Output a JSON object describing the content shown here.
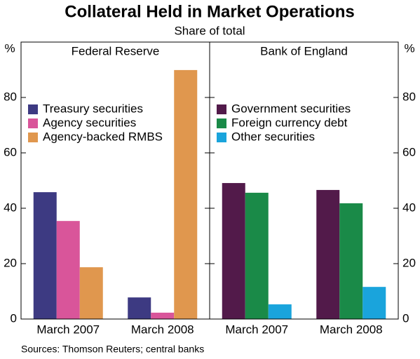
{
  "chart_data": {
    "type": "bar",
    "title": "Collateral Held in Market Operations",
    "subtitle": "Share of total",
    "ylabel": "%",
    "source": "Sources: Thomson Reuters; central banks",
    "ylim": [
      0,
      100
    ],
    "yticks": [
      0,
      20,
      40,
      60,
      80
    ],
    "panels": [
      {
        "title": "Federal Reserve",
        "categories": [
          "March 2007",
          "March 2008"
        ],
        "series": [
          {
            "name": "Treasury securities",
            "color": "#3d3a82",
            "values": [
              45.8,
              7.8
            ]
          },
          {
            "name": "Agency securities",
            "color": "#d9559a",
            "values": [
              35.4,
              2.3
            ]
          },
          {
            "name": "Agency-backed RMBS",
            "color": "#e0974e",
            "values": [
              18.7,
              89.9
            ]
          }
        ]
      },
      {
        "title": "Bank of England",
        "categories": [
          "March 2007",
          "March 2008"
        ],
        "series": [
          {
            "name": "Government securities",
            "color": "#521a4a",
            "values": [
              49.1,
              46.6
            ]
          },
          {
            "name": "Foreign currency debt",
            "color": "#1a8a48",
            "values": [
              45.6,
              41.8
            ]
          },
          {
            "name": "Other securities",
            "color": "#1aa4dc",
            "values": [
              5.3,
              11.6
            ]
          }
        ]
      }
    ]
  }
}
